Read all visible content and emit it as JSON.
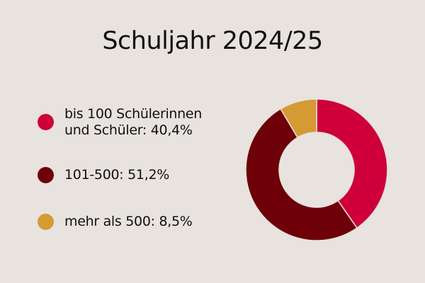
{
  "title": "Schuljahr 2024/25",
  "legend": [
    {
      "label_line1": "bis 100 Schülerinnen",
      "label_line2": "und Schüler: 40,4%",
      "color": "#cf0039"
    },
    {
      "label_line1": "101-500: 51,2%",
      "label_line2": "",
      "color": "#6e0009"
    },
    {
      "label_line1": "mehr als 500: 8,5%",
      "label_line2": "",
      "color": "#d59a34"
    }
  ],
  "chart_data": {
    "type": "pie",
    "variant": "donut",
    "title": "Schuljahr 2024/25",
    "categories": [
      "bis 100 Schülerinnen und Schüler",
      "101-500",
      "mehr als 500"
    ],
    "values": [
      40.4,
      51.2,
      8.5
    ],
    "unit": "%",
    "colors": [
      "#cf0039",
      "#6e0009",
      "#d59a34"
    ],
    "start_angle_deg": 0,
    "direction": "clockwise",
    "legend_position": "left"
  }
}
